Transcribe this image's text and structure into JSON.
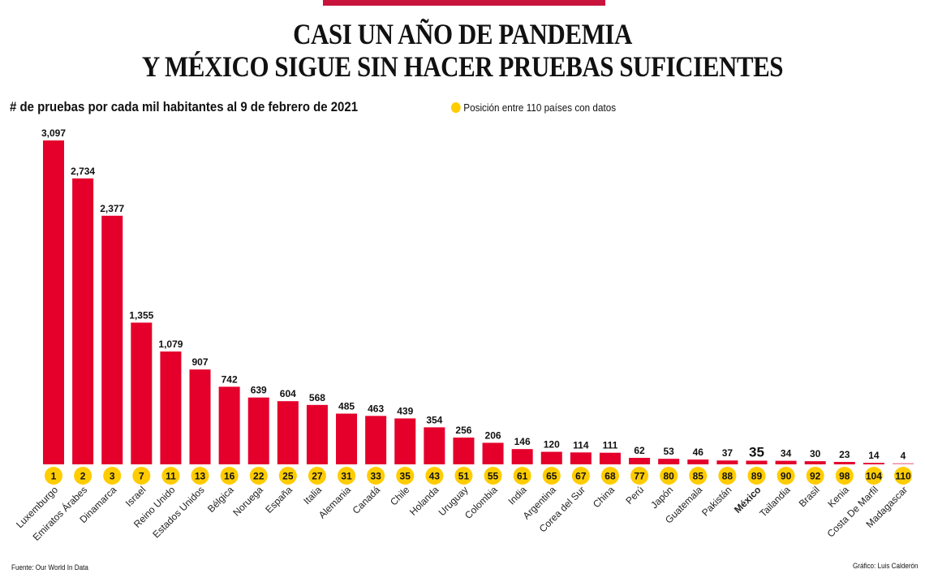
{
  "header": {
    "title_line1": "CASI UN AÑO DE PANDEMIA",
    "title_line2": "Y MÉXICO SIGUE SIN HACER PRUEBAS SUFICIENTES",
    "subtitle": "# de pruebas por cada mil habitantes al 9 de febrero de 2021",
    "legend_label": "Posición entre 110 países con datos"
  },
  "footer": {
    "source": "Fuente: Our World In Data",
    "credit": "Gráfico: Luis Calderón"
  },
  "colors": {
    "bar": "#e4002b",
    "accent_strip": "#c8143c",
    "rank_circle": "#ffcc00",
    "text": "#111111"
  },
  "chart_data": {
    "type": "bar",
    "title": "CASI UN AÑO DE PANDEMIA Y MÉXICO SIGUE SIN HACER PRUEBAS SUFICIENTES",
    "subtitle": "# de pruebas por cada mil habitantes al 9 de febrero de 2021",
    "xlabel": "",
    "ylabel": "",
    "ylim": [
      0,
      3097
    ],
    "grid": false,
    "legend": {
      "label": "Posición entre 110 países con datos",
      "placement": "top-right"
    },
    "highlight": "México",
    "categories": [
      "Luxemburgo",
      "Emiratos Árabes",
      "Dinamarca",
      "Israel",
      "Reino Unido",
      "Estados Unidos",
      "Bélgica",
      "Noruega",
      "España",
      "Italia",
      "Alemania",
      "Canadá",
      "Chile",
      "Holanda",
      "Uruguay",
      "Colombia",
      "India",
      "Argentina",
      "Corea del Sur",
      "China",
      "Perú",
      "Japón",
      "Guatemala",
      "Pakistán",
      "México",
      "Tailandia",
      "Brasil",
      "Kenia",
      "Costa De Marfil",
      "Madagascar"
    ],
    "values": [
      3097,
      2734,
      2377,
      1355,
      1079,
      907,
      742,
      639,
      604,
      568,
      485,
      463,
      439,
      354,
      256,
      206,
      146,
      120,
      114,
      111,
      62,
      53,
      46,
      37,
      35,
      34,
      30,
      23,
      14,
      4
    ],
    "value_labels": [
      "3,097",
      "2,734",
      "2,377",
      "1,355",
      "1,079",
      "907",
      "742",
      "639",
      "604",
      "568",
      "485",
      "463",
      "439",
      "354",
      "256",
      "206",
      "146",
      "120",
      "114",
      "111",
      "62",
      "53",
      "46",
      "37",
      "35",
      "34",
      "30",
      "23",
      "14",
      "4"
    ],
    "ranks": [
      1,
      2,
      3,
      7,
      11,
      13,
      16,
      22,
      25,
      27,
      31,
      33,
      35,
      43,
      51,
      55,
      61,
      65,
      67,
      68,
      77,
      80,
      85,
      88,
      89,
      90,
      92,
      98,
      104,
      110
    ]
  }
}
